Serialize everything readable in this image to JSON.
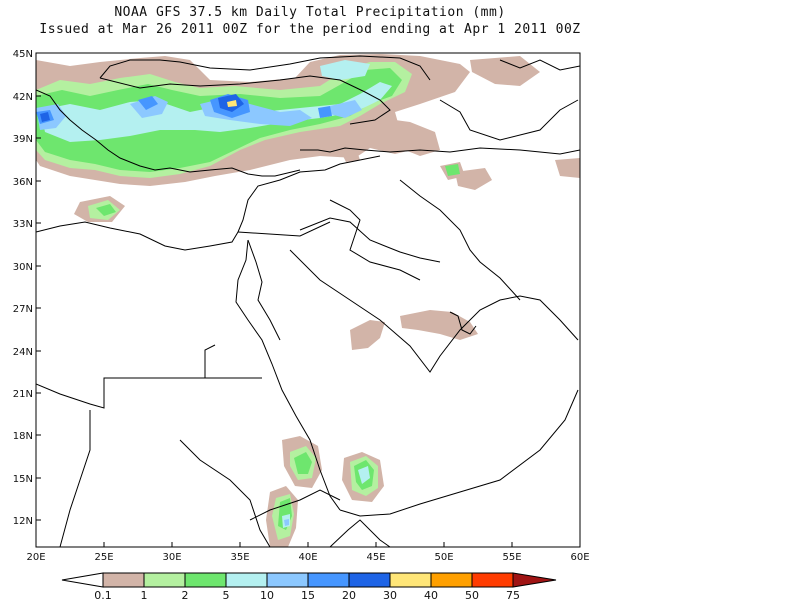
{
  "header": {
    "title": "NOAA GFS 37.5 km Daily Total Precipitation (mm)",
    "subtitle": "Issued at Mar 26 2011 00Z for the period ending at Apr 1 2011 00Z"
  },
  "map": {
    "lon_range": [
      20,
      60
    ],
    "lat_range": [
      10,
      45
    ],
    "lon_ticks": [
      "20E",
      "25E",
      "30E",
      "35E",
      "40E",
      "45E",
      "50E",
      "55E",
      "60E"
    ],
    "lat_ticks": [
      "45N",
      "42N",
      "39N",
      "36N",
      "33N",
      "30N",
      "27N",
      "24N",
      "21N",
      "18N",
      "15N",
      "12N"
    ],
    "colors": {
      "0.1-1": "#d2b4a8",
      "1-2": "#b4f0a0",
      "2-5": "#6ee66e",
      "5-10": "#b4f0f0",
      "10-15": "#8cc8ff",
      "15-20": "#4696ff",
      "20-30": "#1e64e6",
      "30-40": "#ffe678",
      "40-50": "#ffa000",
      "50-75": "#ff3c00",
      "75+": "#a01414"
    }
  },
  "legend": {
    "labels": [
      "0.1",
      "1",
      "2",
      "5",
      "10",
      "15",
      "20",
      "30",
      "40",
      "50",
      "75"
    ],
    "colors": [
      "#d2b4a8",
      "#b4f0a0",
      "#6ee66e",
      "#b4f0f0",
      "#8cc8ff",
      "#4696ff",
      "#1e64e6",
      "#ffe678",
      "#ffa000",
      "#ff3c00",
      "#a01414"
    ]
  }
}
